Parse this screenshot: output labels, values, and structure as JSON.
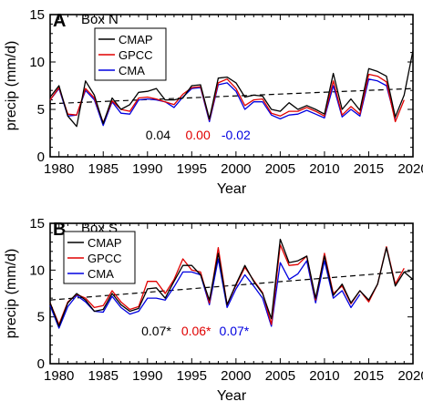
{
  "chart_data": [
    {
      "type": "line",
      "panel_letter": "A",
      "title": "Box N",
      "xlabel": "Year",
      "ylabel": "precip (mm/d)",
      "xlim": [
        1979,
        2020
      ],
      "ylim": [
        0,
        15
      ],
      "x_ticks": [
        1980,
        1985,
        1990,
        1995,
        2000,
        2005,
        2010,
        2015,
        2020
      ],
      "y_ticks": [
        0,
        5,
        10,
        15
      ],
      "legend_position": "top-left",
      "series": [
        {
          "name": "CMAP",
          "color": "#000000",
          "x": [
            1979,
            1980,
            1981,
            1982,
            1983,
            1984,
            1985,
            1986,
            1987,
            1988,
            1989,
            1990,
            1991,
            1992,
            1993,
            1994,
            1995,
            1996,
            1997,
            1998,
            1999,
            2000,
            2001,
            2002,
            2003,
            2004,
            2005,
            2006,
            2007,
            2008,
            2009,
            2010,
            2011,
            2012,
            2013,
            2014,
            2015,
            2016,
            2017,
            2018,
            2019,
            2020
          ],
          "values": [
            6.3,
            7.5,
            4.3,
            3.2,
            8.0,
            6.5,
            3.5,
            6.2,
            5.0,
            5.5,
            6.8,
            6.9,
            7.2,
            6.0,
            6.0,
            6.2,
            7.5,
            7.6,
            4.0,
            8.3,
            8.4,
            7.8,
            6.3,
            6.5,
            6.4,
            5.0,
            4.8,
            5.7,
            5.0,
            5.4,
            5.0,
            4.5,
            8.8,
            5.0,
            6.1,
            4.9,
            9.3,
            9.0,
            8.5,
            4.2,
            6.5,
            11.2
          ]
        },
        {
          "name": "GPCC",
          "color": "#e00000",
          "x": [
            1979,
            1980,
            1981,
            1982,
            1983,
            1984,
            1985,
            1986,
            1987,
            1988,
            1989,
            1990,
            1991,
            1992,
            1993,
            1994,
            1995,
            1996,
            1997,
            1998,
            1999,
            2000,
            2001,
            2002,
            2003,
            2004,
            2005,
            2006,
            2007,
            2008,
            2009,
            2010,
            2011,
            2012,
            2013,
            2014,
            2015,
            2016,
            2017,
            2018,
            2019
          ],
          "values": [
            6.0,
            7.3,
            4.5,
            4.4,
            7.2,
            6.2,
            3.6,
            5.9,
            5.0,
            4.8,
            6.2,
            6.3,
            6.1,
            5.8,
            5.5,
            6.6,
            7.3,
            7.4,
            3.9,
            7.8,
            8.2,
            7.2,
            5.4,
            6.0,
            6.1,
            4.6,
            4.3,
            4.8,
            4.8,
            5.2,
            4.8,
            4.3,
            8.0,
            4.4,
            5.3,
            4.5,
            8.7,
            8.5,
            7.9,
            3.7,
            6.0
          ]
        },
        {
          "name": "CMA",
          "color": "#0000e0",
          "x": [
            1979,
            1980,
            1981,
            1982,
            1983,
            1984,
            1985,
            1986,
            1987,
            1988,
            1989,
            1990,
            1991,
            1992,
            1993,
            1994,
            1995,
            1996,
            1997,
            1998,
            1999,
            2000,
            2001,
            2002,
            2003,
            2004,
            2005,
            2006,
            2007,
            2008,
            2009,
            2010,
            2011,
            2012,
            2013,
            2014,
            2015,
            2016,
            2017,
            2018
          ],
          "values": [
            6.0,
            7.2,
            4.3,
            4.4,
            7.0,
            6.0,
            3.3,
            5.8,
            4.6,
            4.5,
            6.0,
            6.1,
            6.0,
            5.8,
            5.2,
            6.3,
            7.2,
            7.3,
            3.7,
            7.6,
            7.8,
            6.9,
            5.0,
            5.8,
            5.8,
            4.4,
            4.0,
            4.4,
            4.5,
            4.9,
            4.5,
            4.1,
            7.5,
            4.2,
            5.0,
            4.3,
            8.2,
            8.0,
            7.5,
            4.0
          ]
        }
      ],
      "trend": {
        "x": [
          1979,
          2020
        ],
        "values": [
          5.6,
          7.2
        ],
        "style": "dashed"
      },
      "annotations": [
        {
          "text": "0.04",
          "color": "#000000",
          "x": 1991.2,
          "y": 2.3
        },
        {
          "text": "0.00",
          "color": "#e00000",
          "x": 1995.7,
          "y": 2.3
        },
        {
          "text": "-0.02",
          "color": "#0000e0",
          "x": 2000.0,
          "y": 2.3
        }
      ]
    },
    {
      "type": "line",
      "panel_letter": "B",
      "title": "Box S",
      "xlabel": "Year",
      "ylabel": "precip (mm/d)",
      "xlim": [
        1979,
        2020
      ],
      "ylim": [
        0,
        15
      ],
      "x_ticks": [
        1980,
        1985,
        1990,
        1995,
        2000,
        2005,
        2010,
        2015,
        2020
      ],
      "y_ticks": [
        0,
        5,
        10,
        15
      ],
      "legend_position": "top-left",
      "series": [
        {
          "name": "CMAP",
          "color": "#000000",
          "x": [
            1979,
            1980,
            1981,
            1982,
            1983,
            1984,
            1985,
            1986,
            1987,
            1988,
            1989,
            1990,
            1991,
            1992,
            1993,
            1994,
            1995,
            1996,
            1997,
            1998,
            1999,
            2000,
            2001,
            2002,
            2003,
            2004,
            2005,
            2006,
            2007,
            2008,
            2009,
            2010,
            2011,
            2012,
            2013,
            2014,
            2015,
            2016,
            2017,
            2018,
            2019,
            2020
          ],
          "values": [
            6.5,
            4.0,
            6.5,
            7.5,
            6.8,
            5.6,
            5.8,
            7.5,
            6.3,
            5.6,
            5.9,
            8.0,
            8.1,
            7.0,
            8.8,
            10.5,
            10.5,
            9.5,
            6.8,
            11.8,
            6.3,
            8.5,
            10.5,
            8.8,
            7.5,
            4.8,
            13.3,
            10.8,
            11.0,
            11.5,
            7.0,
            11.5,
            7.3,
            8.5,
            6.5,
            7.8,
            6.8,
            8.5,
            12.4,
            8.3,
            9.8,
            9.0
          ]
        },
        {
          "name": "GPCC",
          "color": "#e00000",
          "x": [
            1979,
            1980,
            1981,
            1982,
            1983,
            1984,
            1985,
            1986,
            1987,
            1988,
            1989,
            1990,
            1991,
            1992,
            1993,
            1994,
            1995,
            1996,
            1997,
            1998,
            1999,
            2000,
            2001,
            2002,
            2003,
            2004,
            2005,
            2006,
            2007,
            2008,
            2009,
            2010,
            2011,
            2012,
            2013,
            2014,
            2015,
            2016,
            2017,
            2018,
            2019
          ],
          "values": [
            6.5,
            4.2,
            6.6,
            7.4,
            7.0,
            6.0,
            6.2,
            7.8,
            6.6,
            5.8,
            6.1,
            8.8,
            8.8,
            7.5,
            9.0,
            11.2,
            10.0,
            9.8,
            6.5,
            12.4,
            6.3,
            8.4,
            10.3,
            8.9,
            7.6,
            4.2,
            12.7,
            10.5,
            10.6,
            11.5,
            6.8,
            11.8,
            7.5,
            8.3,
            6.4,
            7.8,
            6.6,
            8.5,
            12.5,
            8.5,
            10.2
          ]
        },
        {
          "name": "CMA",
          "color": "#0000e0",
          "x": [
            1979,
            1980,
            1981,
            1982,
            1983,
            1984,
            1985,
            1986,
            1987,
            1988,
            1989,
            1990,
            1991,
            1992,
            1993,
            1994,
            1995,
            1996,
            1997,
            1998,
            1999,
            2000,
            2001,
            2002,
            2003,
            2004,
            2005,
            2006,
            2007,
            2008,
            2009,
            2010,
            2011,
            2012,
            2013,
            2014
          ],
          "values": [
            6.2,
            3.8,
            6.1,
            7.3,
            6.6,
            5.6,
            5.5,
            7.2,
            6.0,
            5.3,
            5.6,
            7.0,
            7.0,
            6.8,
            8.2,
            9.8,
            9.8,
            9.5,
            6.3,
            11.2,
            6.0,
            8.0,
            9.5,
            8.3,
            7.0,
            4.0,
            10.8,
            9.0,
            9.6,
            11.0,
            6.5,
            11.0,
            7.0,
            7.8,
            6.0,
            7.4
          ]
        }
      ],
      "trend": {
        "x": [
          1979,
          2020
        ],
        "values": [
          6.8,
          9.9
        ],
        "style": "dashed"
      },
      "annotations": [
        {
          "text": "0.07*",
          "color": "#000000",
          "x": 1991.0,
          "y": 3.5
        },
        {
          "text": "0.06*",
          "color": "#e00000",
          "x": 1995.5,
          "y": 3.5
        },
        {
          "text": "0.07*",
          "color": "#0000e0",
          "x": 1999.8,
          "y": 3.5
        }
      ]
    }
  ]
}
